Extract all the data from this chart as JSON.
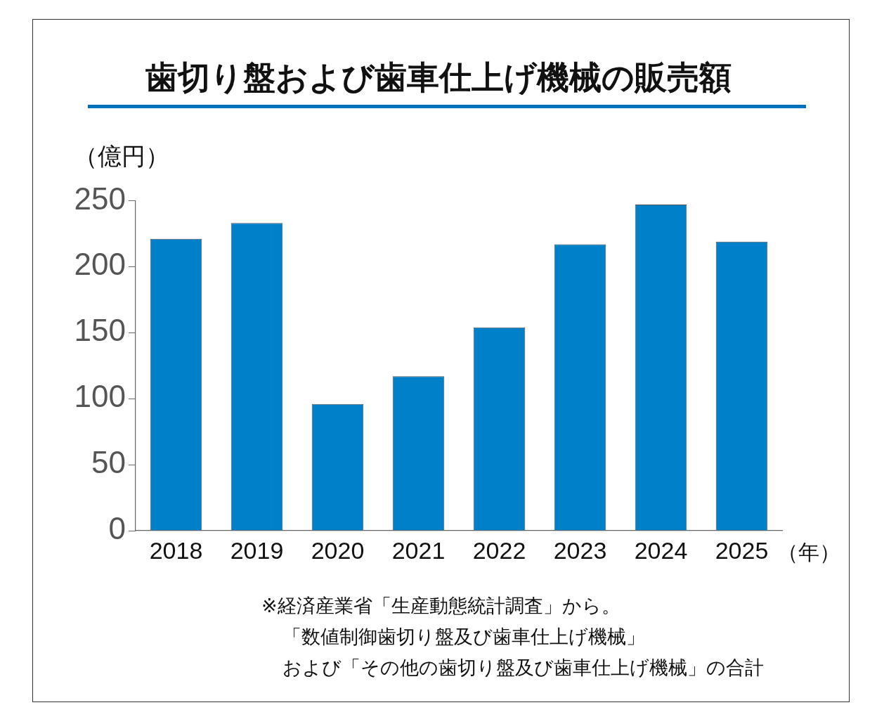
{
  "chart_data": {
    "type": "bar",
    "title": "歯切り盤および歯車仕上げ機械の販売額",
    "ylabel": "（億円）",
    "xlabel": "（年）",
    "categories": [
      "2018",
      "2019",
      "2020",
      "2021",
      "2022",
      "2023",
      "2024",
      "2025"
    ],
    "values": [
      221,
      233,
      96,
      117,
      154,
      217,
      247,
      219
    ],
    "color": "#0080c8",
    "ylim": [
      0,
      250
    ],
    "yticks": [
      0,
      50,
      100,
      150,
      200,
      250
    ],
    "annotations": [
      "※経済産業省「生産動態統計調査」から。",
      "「数値制御歯切り盤及び歯車仕上げ機械」",
      "および「その他の歯切り盤及び歯車仕上げ機械」の合計"
    ]
  }
}
